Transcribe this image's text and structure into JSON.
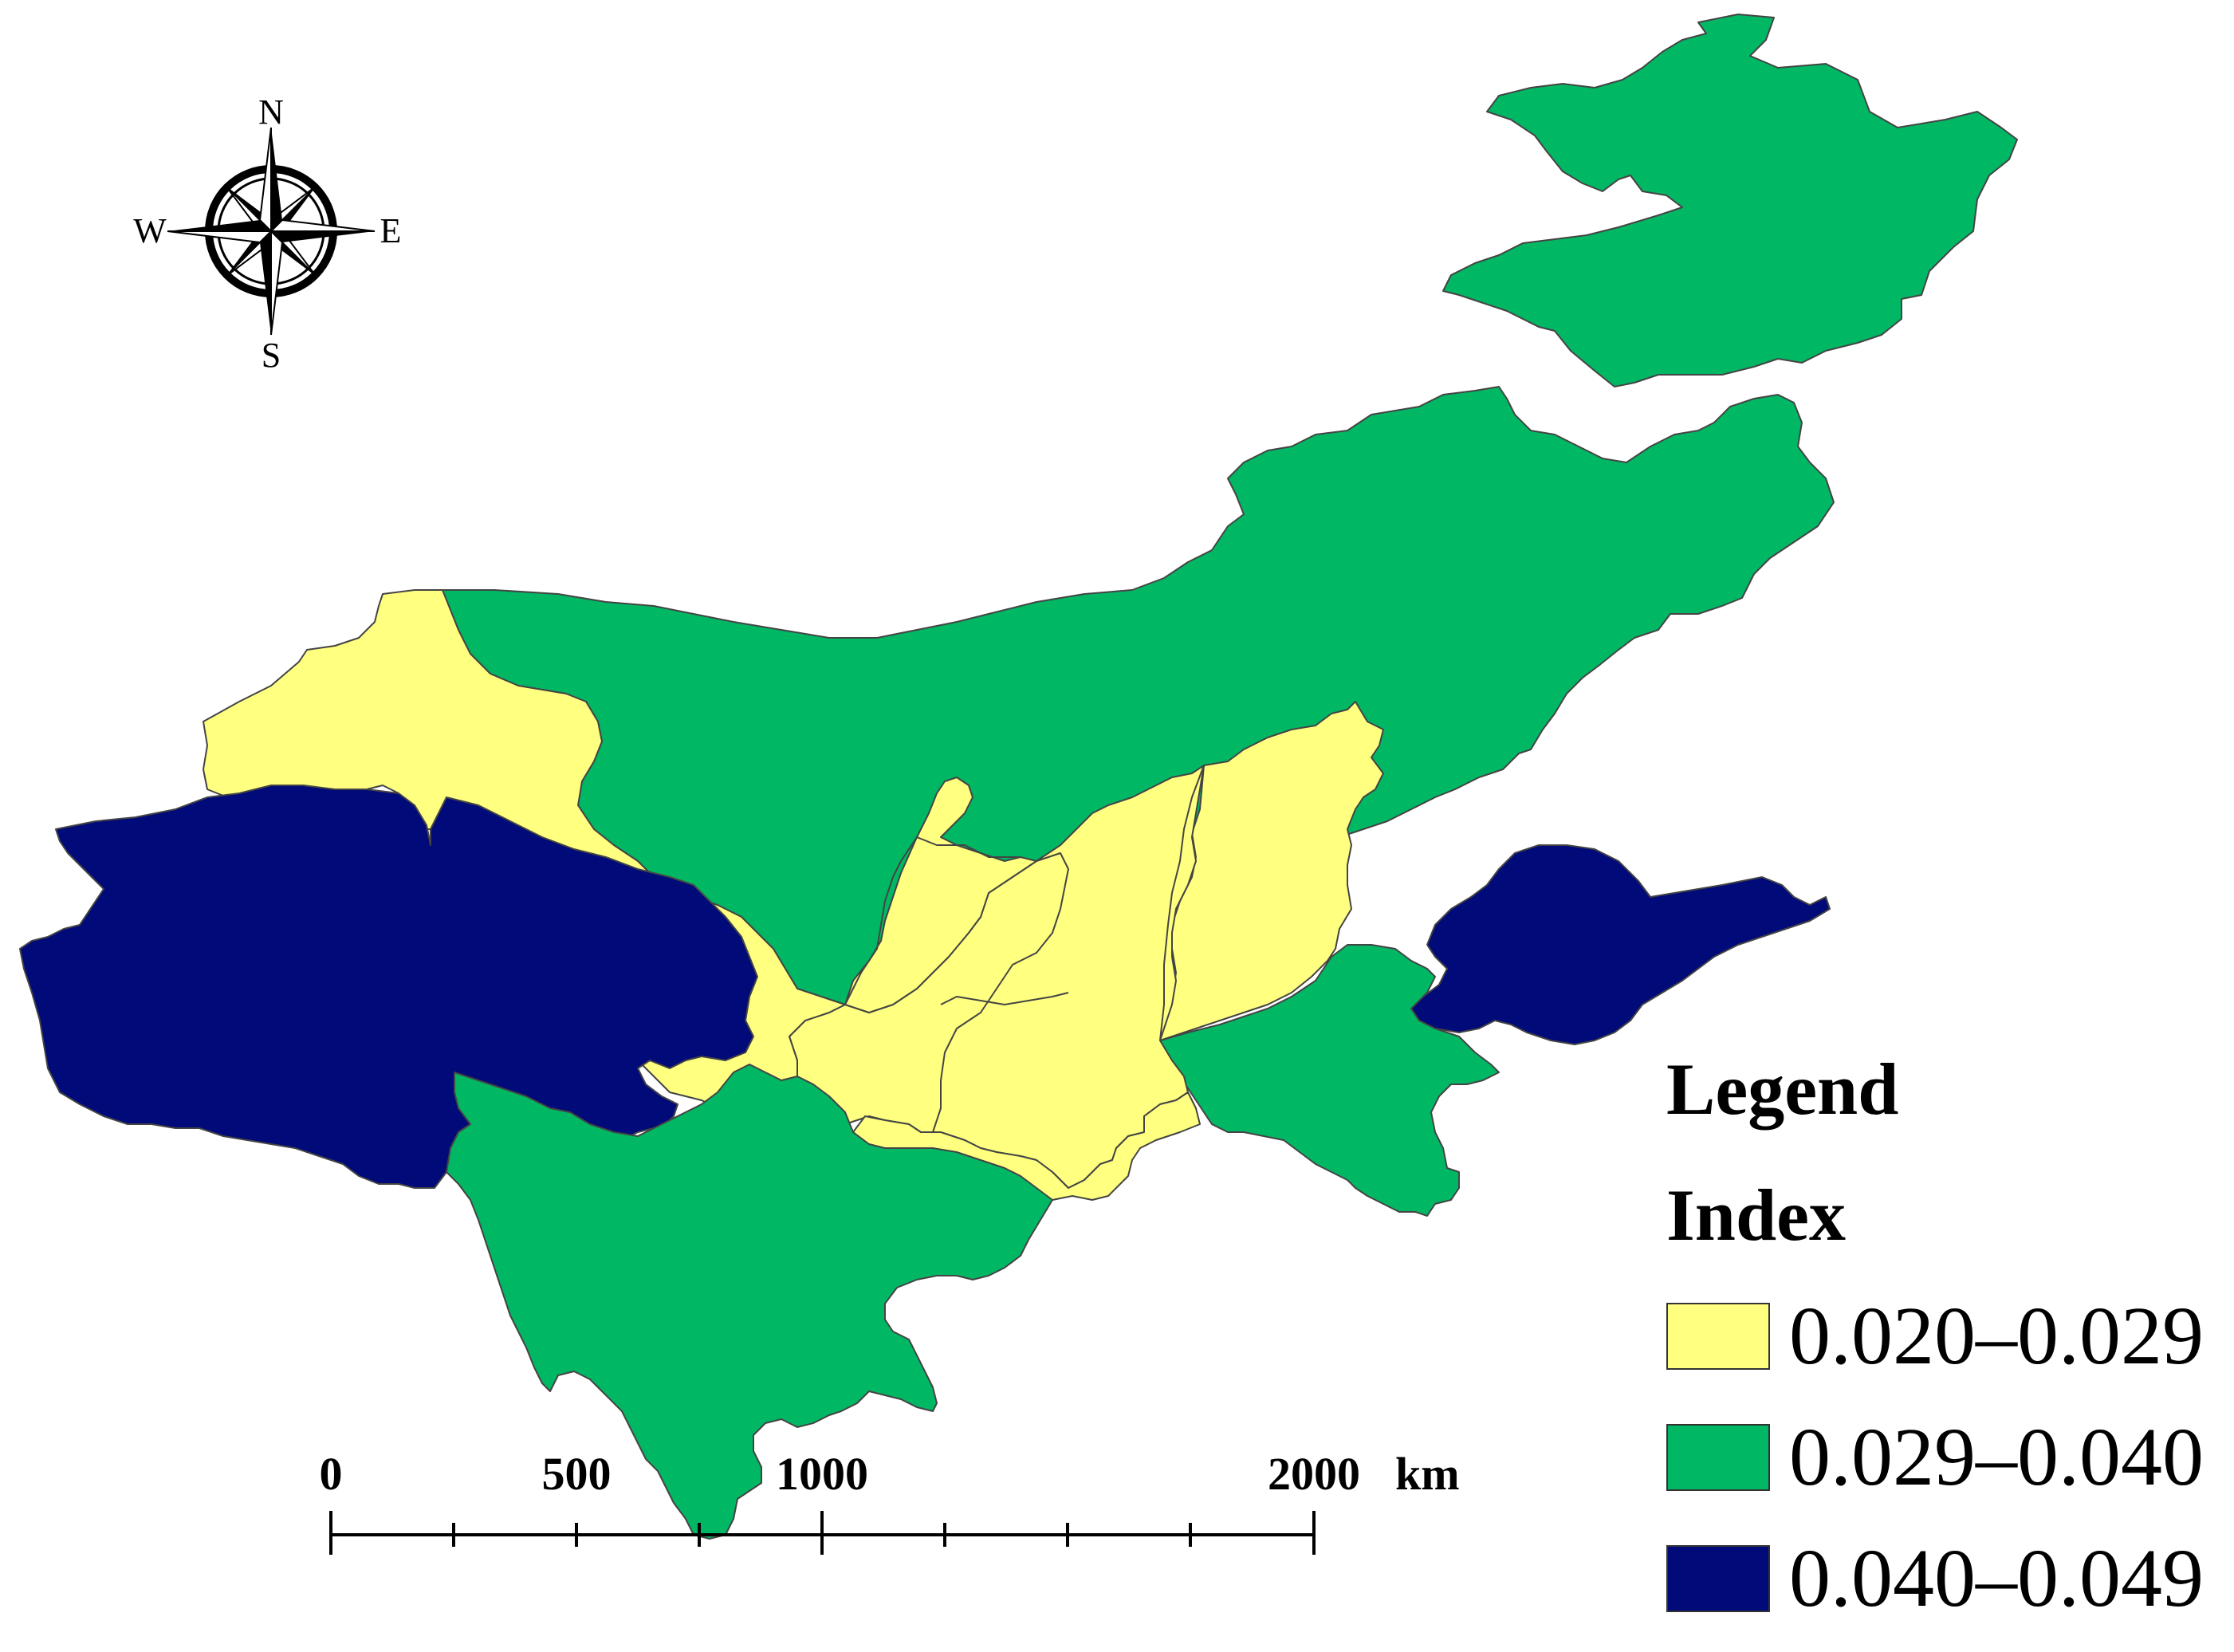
{
  "legend": {
    "title": "Legend",
    "subtitle": "Index",
    "items": [
      {
        "label": "0.020–0.029",
        "color": "#ffff80"
      },
      {
        "label": "0.029–0.040",
        "color": "#00b864"
      },
      {
        "label": "0.040–0.049",
        "color": "#000a78"
      }
    ]
  },
  "compass": {
    "north": "N",
    "south": "S",
    "east": "E",
    "west": "W"
  },
  "scale_bar": {
    "labels": [
      "0",
      "500",
      "1000",
      "2000"
    ],
    "unit": "km"
  },
  "colors": {
    "low": "#ffff80",
    "mid": "#00b864",
    "high": "#000a78",
    "border": "#444444"
  }
}
